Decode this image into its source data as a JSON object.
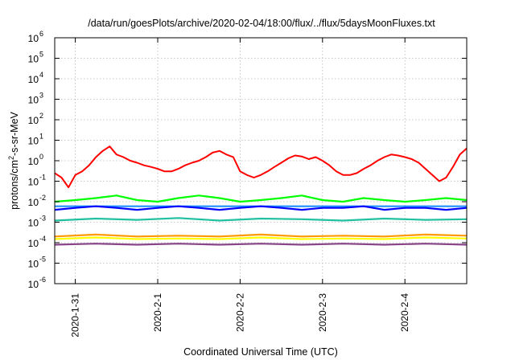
{
  "chart_data": {
    "type": "line",
    "title": "/data/run/goesPlots/archive/2020-02-04/18:00/flux/../flux/5daysMoonFluxes.txt",
    "xlabel": "Coordinated Universal Time (UTC)",
    "ylabel": {
      "base": "protons/cm",
      "sup": "2",
      "rest": "-s-sr-MeV"
    },
    "y_scale": "log",
    "ylim": [
      1e-06,
      1000000.0
    ],
    "y_ticks": [
      {
        "value": 1e-06,
        "base": "10",
        "exp": "-6"
      },
      {
        "value": 1e-05,
        "base": "10",
        "exp": "-5"
      },
      {
        "value": 0.0001,
        "base": "10",
        "exp": "-4"
      },
      {
        "value": 0.001,
        "base": "10",
        "exp": "-3"
      },
      {
        "value": 0.01,
        "base": "10",
        "exp": "-2"
      },
      {
        "value": 0.1,
        "base": "10",
        "exp": "-1"
      },
      {
        "value": 1,
        "base": "10",
        "exp": "0"
      },
      {
        "value": 10,
        "base": "10",
        "exp": "1"
      },
      {
        "value": 100,
        "base": "10",
        "exp": "2"
      },
      {
        "value": 1000,
        "base": "10",
        "exp": "3"
      },
      {
        "value": 10000,
        "base": "10",
        "exp": "4"
      },
      {
        "value": 100000,
        "base": "10",
        "exp": "5"
      },
      {
        "value": 1000000,
        "base": "10",
        "exp": "6"
      }
    ],
    "xlim": [
      "2020-01-30T18:00",
      "2020-02-04T18:00"
    ],
    "x_ticks": [
      "2020-1-31",
      "2020-2-1",
      "2020-2-2",
      "2020-2-3",
      "2020-2-4"
    ],
    "grid": true,
    "series": [
      {
        "color": "#ff0000",
        "x": [
          "2020-01-30T18:00",
          "2020-01-30T20:00",
          "2020-01-30T22:00",
          "2020-01-31T00:00",
          "2020-01-31T02:00",
          "2020-01-31T04:00",
          "2020-01-31T06:00",
          "2020-01-31T08:00",
          "2020-01-31T10:00",
          "2020-01-31T12:00",
          "2020-01-31T14:00",
          "2020-01-31T16:00",
          "2020-01-31T18:00",
          "2020-01-31T20:00",
          "2020-01-31T22:00",
          "2020-02-01T00:00",
          "2020-02-01T02:00",
          "2020-02-01T04:00",
          "2020-02-01T06:00",
          "2020-02-01T08:00",
          "2020-02-01T10:00",
          "2020-02-01T12:00",
          "2020-02-01T14:00",
          "2020-02-01T16:00",
          "2020-02-01T18:00",
          "2020-02-01T20:00",
          "2020-02-01T22:00",
          "2020-02-02T00:00",
          "2020-02-02T02:00",
          "2020-02-02T04:00",
          "2020-02-02T06:00",
          "2020-02-02T08:00",
          "2020-02-02T10:00",
          "2020-02-02T12:00",
          "2020-02-02T14:00",
          "2020-02-02T16:00",
          "2020-02-02T18:00",
          "2020-02-02T20:00",
          "2020-02-02T22:00",
          "2020-02-03T00:00",
          "2020-02-03T02:00",
          "2020-02-03T04:00",
          "2020-02-03T06:00",
          "2020-02-03T08:00",
          "2020-02-03T10:00",
          "2020-02-03T12:00",
          "2020-02-03T14:00",
          "2020-02-03T16:00",
          "2020-02-03T18:00",
          "2020-02-03T20:00",
          "2020-02-03T22:00",
          "2020-02-04T00:00",
          "2020-02-04T02:00",
          "2020-02-04T04:00",
          "2020-02-04T06:00",
          "2020-02-04T08:00",
          "2020-02-04T10:00",
          "2020-02-04T12:00",
          "2020-02-04T14:00",
          "2020-02-04T16:00",
          "2020-02-04T18:00"
        ],
        "y": [
          0.25,
          0.15,
          0.05,
          0.2,
          0.3,
          0.6,
          1.5,
          3,
          5,
          2,
          1.5,
          1,
          0.8,
          0.6,
          0.5,
          0.4,
          0.3,
          0.3,
          0.4,
          0.6,
          0.8,
          1,
          1.5,
          2.5,
          3,
          2,
          1.5,
          0.3,
          0.2,
          0.15,
          0.2,
          0.3,
          0.5,
          0.8,
          1.3,
          1.8,
          1.6,
          1.2,
          1.5,
          1,
          0.6,
          0.3,
          0.2,
          0.2,
          0.25,
          0.4,
          0.6,
          1,
          1.5,
          2,
          1.8,
          1.5,
          1.2,
          0.8,
          0.4,
          0.2,
          0.1,
          0.15,
          0.5,
          2,
          4
        ]
      },
      {
        "color": "#00ff00",
        "x": [
          "2020-01-30T18:00",
          "2020-01-31T00:00",
          "2020-01-31T06:00",
          "2020-01-31T12:00",
          "2020-01-31T18:00",
          "2020-02-01T00:00",
          "2020-02-01T06:00",
          "2020-02-01T12:00",
          "2020-02-01T18:00",
          "2020-02-02T00:00",
          "2020-02-02T06:00",
          "2020-02-02T12:00",
          "2020-02-02T18:00",
          "2020-02-03T00:00",
          "2020-02-03T06:00",
          "2020-02-03T12:00",
          "2020-02-03T18:00",
          "2020-02-04T00:00",
          "2020-02-04T06:00",
          "2020-02-04T12:00",
          "2020-02-04T18:00"
        ],
        "y": [
          0.01,
          0.012,
          0.015,
          0.02,
          0.012,
          0.01,
          0.015,
          0.02,
          0.015,
          0.01,
          0.012,
          0.015,
          0.02,
          0.012,
          0.01,
          0.015,
          0.012,
          0.01,
          0.012,
          0.015,
          0.012
        ]
      },
      {
        "color": "#0000ff",
        "x": [
          "2020-01-30T18:00",
          "2020-01-31T00:00",
          "2020-01-31T06:00",
          "2020-01-31T12:00",
          "2020-01-31T18:00",
          "2020-02-01T00:00",
          "2020-02-01T06:00",
          "2020-02-01T12:00",
          "2020-02-01T18:00",
          "2020-02-02T00:00",
          "2020-02-02T06:00",
          "2020-02-02T12:00",
          "2020-02-02T18:00",
          "2020-02-03T00:00",
          "2020-02-03T06:00",
          "2020-02-03T12:00",
          "2020-02-03T18:00",
          "2020-02-04T00:00",
          "2020-02-04T06:00",
          "2020-02-04T12:00",
          "2020-02-04T18:00"
        ],
        "y": [
          0.004,
          0.005,
          0.006,
          0.005,
          0.004,
          0.005,
          0.006,
          0.005,
          0.004,
          0.005,
          0.006,
          0.005,
          0.004,
          0.005,
          0.005,
          0.006,
          0.004,
          0.005,
          0.005,
          0.004,
          0.005
        ]
      },
      {
        "color": "#1e90ff",
        "x": [
          "2020-01-30T18:00",
          "2020-01-31T18:00",
          "2020-02-01T18:00",
          "2020-02-02T18:00",
          "2020-02-03T18:00",
          "2020-02-04T18:00"
        ],
        "y": [
          0.006,
          0.006,
          0.006,
          0.006,
          0.006,
          0.006
        ]
      },
      {
        "color": "#20c0a0",
        "x": [
          "2020-01-30T18:00",
          "2020-01-31T06:00",
          "2020-01-31T18:00",
          "2020-02-01T06:00",
          "2020-02-01T18:00",
          "2020-02-02T06:00",
          "2020-02-02T18:00",
          "2020-02-03T06:00",
          "2020-02-03T18:00",
          "2020-02-04T06:00",
          "2020-02-04T18:00"
        ],
        "y": [
          0.0012,
          0.0015,
          0.0013,
          0.0016,
          0.0012,
          0.0015,
          0.0014,
          0.0012,
          0.0015,
          0.0013,
          0.0014
        ]
      },
      {
        "color": "#ff9900",
        "x": [
          "2020-01-30T18:00",
          "2020-01-31T06:00",
          "2020-01-31T18:00",
          "2020-02-01T06:00",
          "2020-02-01T18:00",
          "2020-02-02T06:00",
          "2020-02-02T18:00",
          "2020-02-03T06:00",
          "2020-02-03T18:00",
          "2020-02-04T06:00",
          "2020-02-04T18:00"
        ],
        "y": [
          0.0002,
          0.00025,
          0.0002,
          0.00022,
          0.0002,
          0.00025,
          0.0002,
          0.00022,
          0.0002,
          0.00025,
          0.00022
        ]
      },
      {
        "color": "#ffff00",
        "x": [
          "2020-01-30T18:00",
          "2020-01-31T06:00",
          "2020-01-31T18:00",
          "2020-02-01T06:00",
          "2020-02-01T18:00",
          "2020-02-02T06:00",
          "2020-02-02T18:00",
          "2020-02-03T06:00",
          "2020-02-03T18:00",
          "2020-02-04T06:00",
          "2020-02-04T18:00"
        ],
        "y": [
          0.00015,
          0.00018,
          0.00015,
          0.00016,
          0.00015,
          0.00018,
          0.00015,
          0.00016,
          0.00015,
          0.00018,
          0.00016
        ]
      },
      {
        "color": "#884488",
        "x": [
          "2020-01-30T18:00",
          "2020-01-31T06:00",
          "2020-01-31T18:00",
          "2020-02-01T06:00",
          "2020-02-01T18:00",
          "2020-02-02T06:00",
          "2020-02-02T18:00",
          "2020-02-03T06:00",
          "2020-02-03T18:00",
          "2020-02-04T06:00",
          "2020-02-04T18:00"
        ],
        "y": [
          8e-05,
          9e-05,
          8e-05,
          9e-05,
          8e-05,
          9e-05,
          8e-05,
          9e-05,
          8e-05,
          9e-05,
          8e-05
        ]
      }
    ]
  }
}
